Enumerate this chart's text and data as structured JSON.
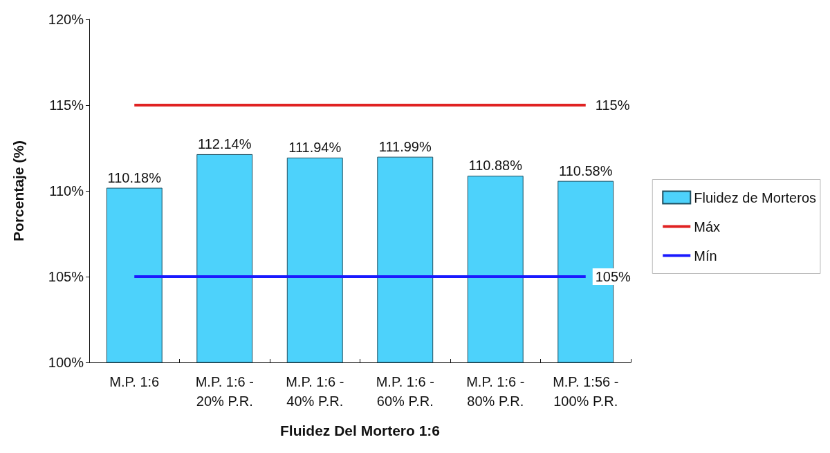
{
  "chart_data": {
    "type": "bar",
    "xlabel": "Fluidez Del Mortero 1:6",
    "ylabel": "Porcentaje (%)",
    "categories": [
      "M.P. 1:6",
      "M.P. 1:6 -\n20% P.R.",
      "M.P. 1:6 -\n40% P.R.",
      "M.P. 1:6 -\n60% P.R.",
      "M.P. 1:6 -\n80% P.R.",
      "M.P. 1:56 -\n100% P.R."
    ],
    "series": [
      {
        "name": "Fluidez de Morteros",
        "color": "#4dd2fb",
        "values": [
          110.18,
          112.14,
          111.94,
          111.99,
          110.88,
          110.58
        ],
        "value_labels": [
          "110.18%",
          "112.14%",
          "111.94%",
          "111.99%",
          "110.88%",
          "110.58%"
        ]
      },
      {
        "name": "Máx",
        "type": "line",
        "color": "#e02222",
        "values": [
          115,
          115,
          115,
          115,
          115,
          115
        ],
        "value_labels": [
          null,
          null,
          null,
          null,
          null,
          "115%"
        ]
      },
      {
        "name": "Mín",
        "type": "line",
        "color": "#1a1aff",
        "values": [
          105,
          105,
          105,
          105,
          105,
          105
        ],
        "value_labels": [
          null,
          null,
          null,
          null,
          null,
          "105%"
        ]
      }
    ],
    "ylim": [
      100,
      120
    ],
    "yticks": [
      {
        "value": 100,
        "label": "100%"
      },
      {
        "value": 105,
        "label": "105%"
      },
      {
        "value": 110,
        "label": "110%"
      },
      {
        "value": 115,
        "label": "115%"
      },
      {
        "value": 120,
        "label": "120%"
      }
    ],
    "grid": false,
    "legend": "right"
  }
}
